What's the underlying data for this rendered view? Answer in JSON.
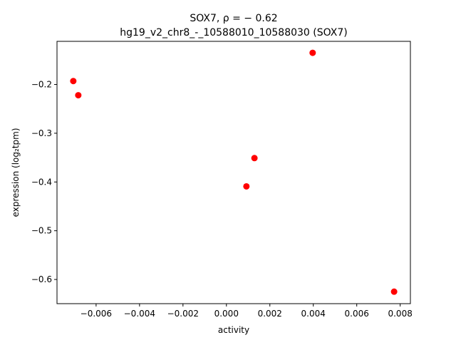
{
  "chart_data": {
    "type": "scatter",
    "title_line1": "SOX7, ρ = − 0.62",
    "title_line2": "hg19_v2_chr8_-_10588010_10588030 (SOX7)",
    "xlabel": "activity",
    "ylabel": "expression (log₂tpm)",
    "xlim": [
      -0.0078,
      0.00847
    ],
    "ylim": [
      -0.6496,
      -0.1115
    ],
    "xticks": [
      -0.006,
      -0.004,
      -0.002,
      0.0,
      0.002,
      0.004,
      0.006,
      0.008
    ],
    "xtick_labels": [
      "−0.006",
      "−0.004",
      "−0.002",
      "0.000",
      "0.002",
      "0.004",
      "0.006",
      "0.008"
    ],
    "yticks": [
      -0.2,
      -0.3,
      -0.4,
      -0.5,
      -0.6
    ],
    "ytick_labels": [
      "−0.2",
      "−0.3",
      "−0.4",
      "−0.5",
      "−0.6"
    ],
    "grid": false,
    "marker_color": "#ff0000",
    "points": [
      {
        "x": -0.00705,
        "y": -0.193
      },
      {
        "x": -0.00682,
        "y": -0.222
      },
      {
        "x": 0.00397,
        "y": -0.135
      },
      {
        "x": 0.00129,
        "y": -0.351
      },
      {
        "x": 0.00092,
        "y": -0.409
      },
      {
        "x": 0.00772,
        "y": -0.625
      }
    ]
  }
}
